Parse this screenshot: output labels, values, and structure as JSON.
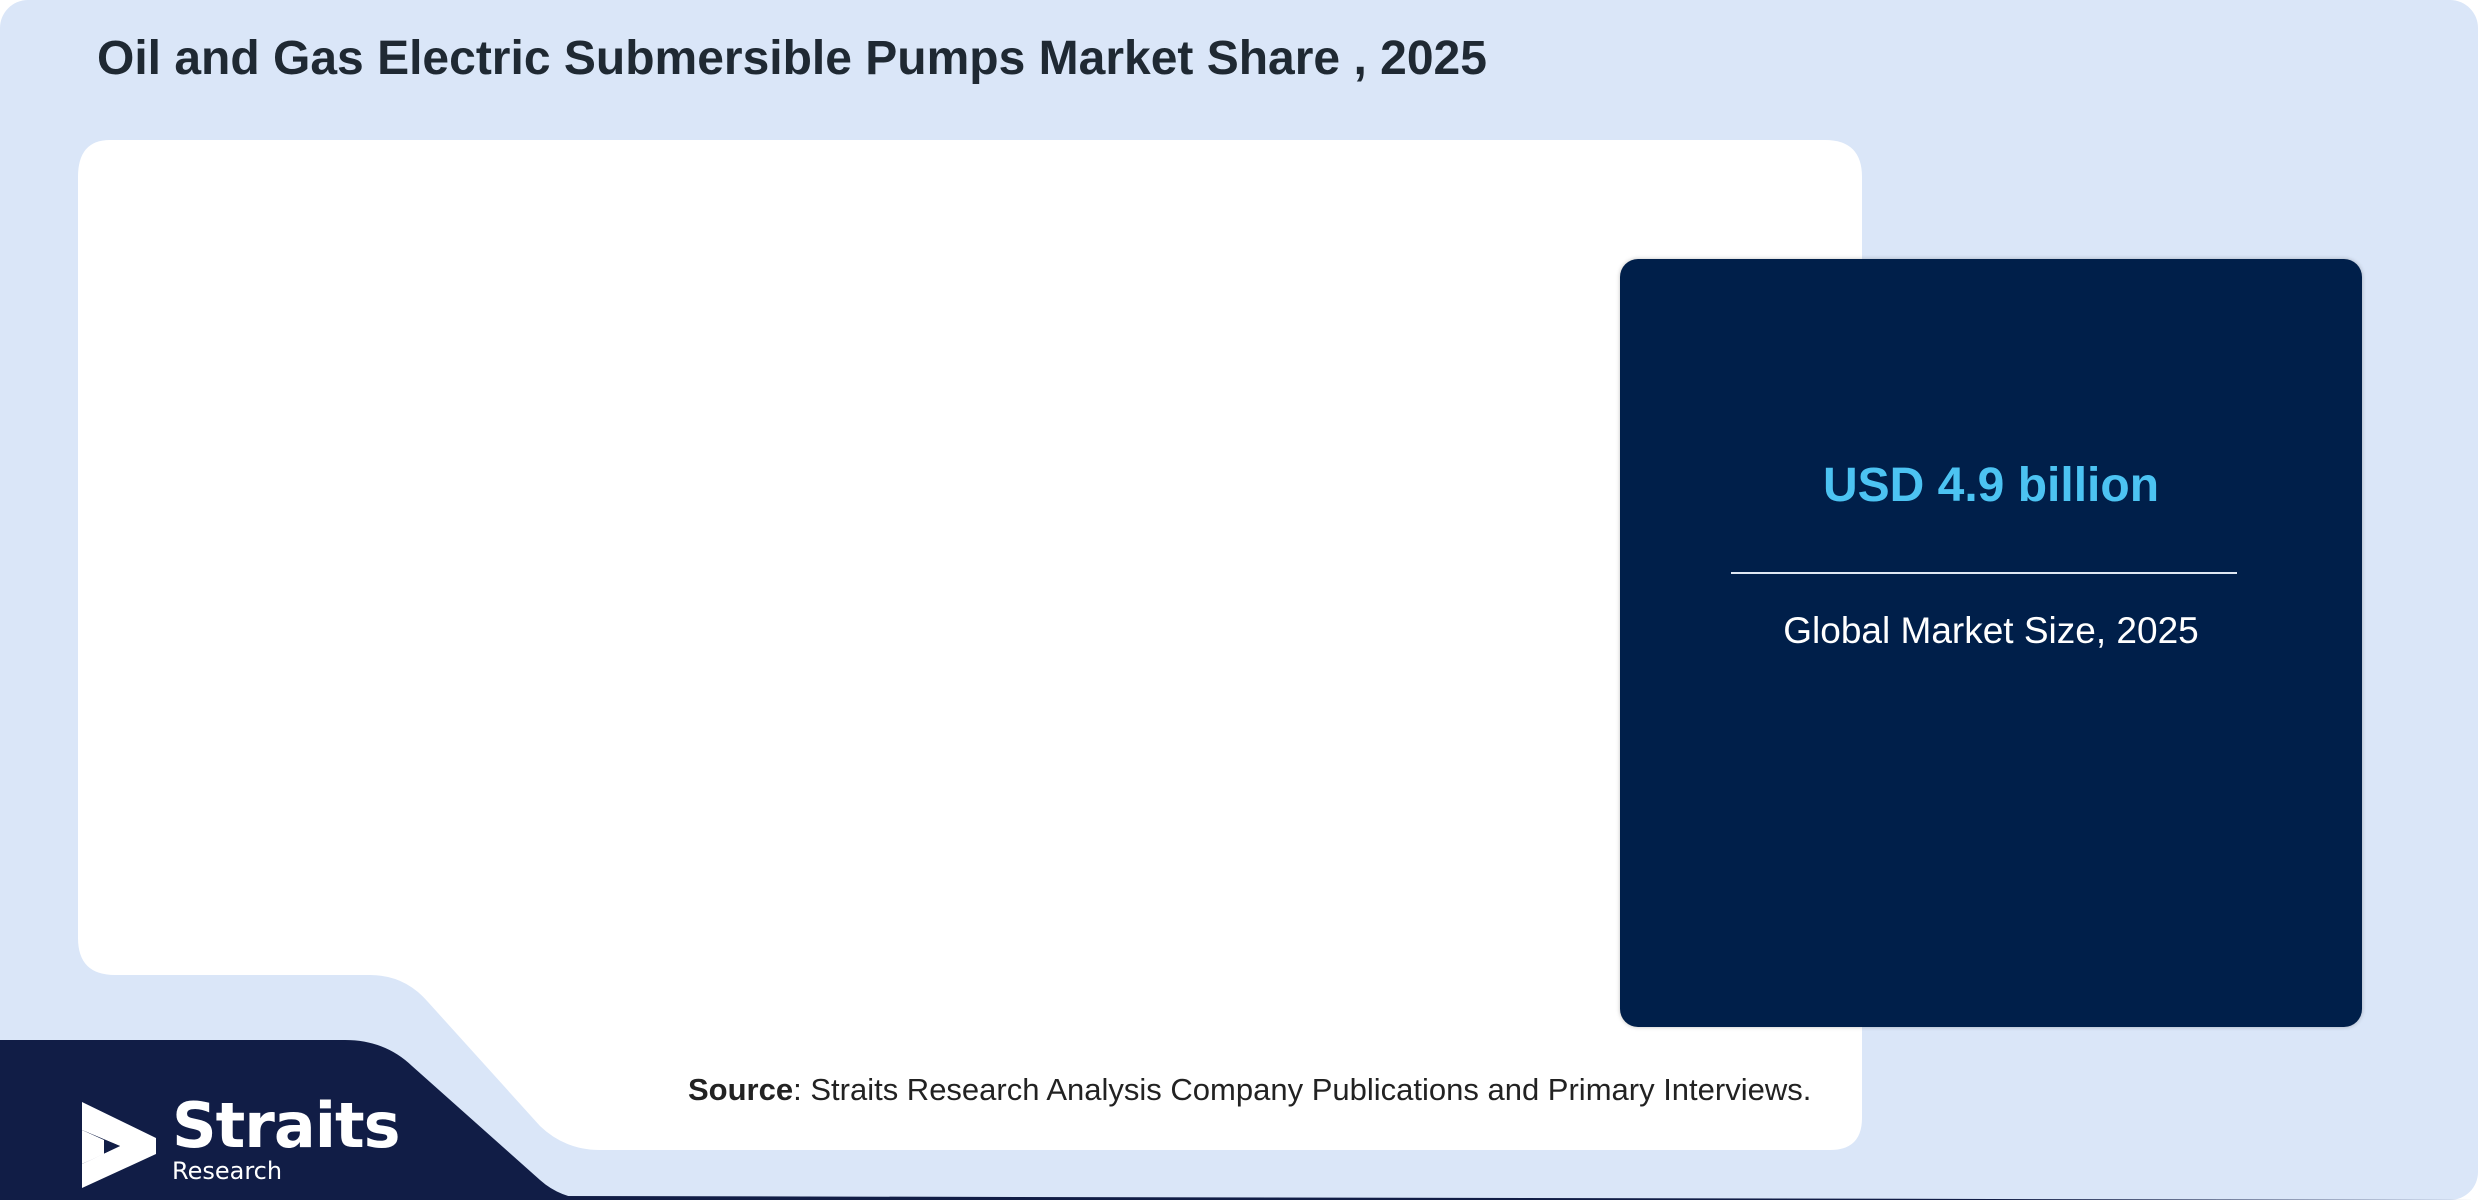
{
  "header": {
    "title": "Oil and Gas Electric Submersible Pumps Market Share , 2025"
  },
  "stat_card": {
    "value": "USD 4.9 billion",
    "label": "Global Market Size, 2025"
  },
  "source": {
    "label": "Source",
    "text": ": Straits Research Analysis Company Publications and Primary Interviews."
  },
  "logo": {
    "name": "Straits",
    "sub": "Research",
    "icon": "straits-arrow-icon"
  },
  "colors": {
    "page_background": "#dae6f8",
    "panel_background": "#ffffff",
    "card_background": "#001f4a",
    "accent_value": "#4cc3f2",
    "footer_band": "#111d46",
    "title_text": "#1f2933"
  }
}
